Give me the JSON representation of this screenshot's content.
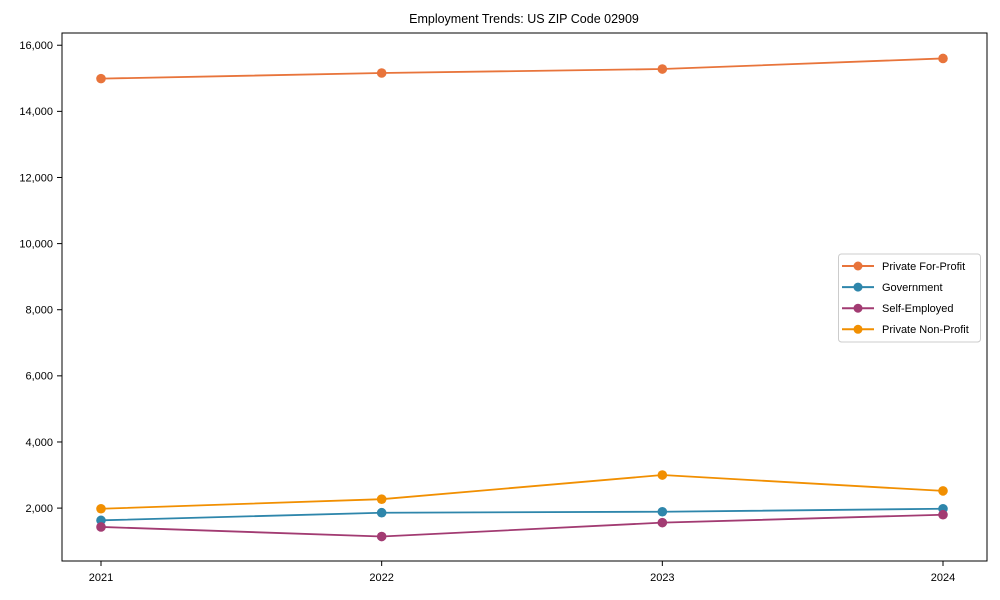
{
  "chart_data": {
    "type": "line",
    "title": "Employment Trends: US ZIP Code 02909",
    "x": [
      "2021",
      "2022",
      "2023",
      "2024"
    ],
    "series": [
      {
        "name": "Private For-Profit",
        "color": "#E8743B",
        "values": [
          14990,
          15160,
          15280,
          15600
        ]
      },
      {
        "name": "Government",
        "color": "#2E86AB",
        "values": [
          1630,
          1860,
          1890,
          1980
        ]
      },
      {
        "name": "Self-Employed",
        "color": "#A23B72",
        "values": [
          1430,
          1140,
          1560,
          1800
        ]
      },
      {
        "name": "Private Non-Profit",
        "color": "#F18F01",
        "values": [
          1980,
          2270,
          3000,
          2520
        ]
      }
    ],
    "yticks": [
      2000,
      4000,
      6000,
      8000,
      10000,
      12000,
      14000,
      16000
    ],
    "ylim": [
      400,
      16370
    ],
    "xlabel": "",
    "ylabel": "",
    "grid": false,
    "legend_position": "center right",
    "frame_color": "#000000",
    "legend_border_color": "#cccccc",
    "legend_background": "#ffffff"
  }
}
